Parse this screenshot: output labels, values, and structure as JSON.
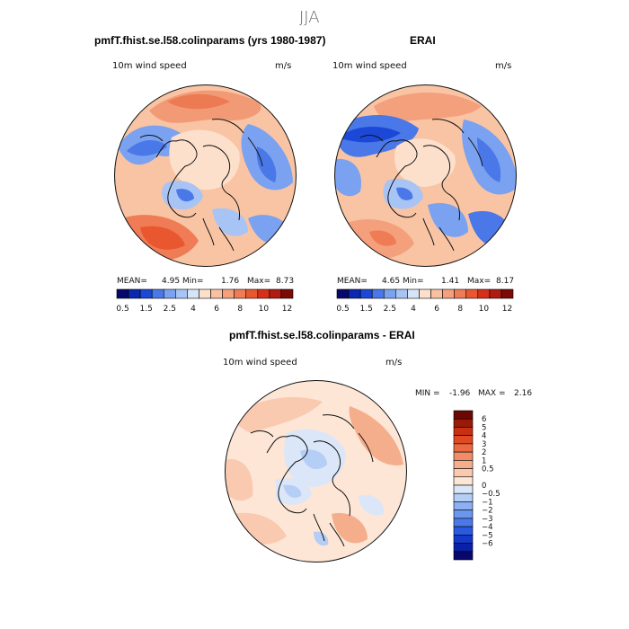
{
  "figure": {
    "title": "JJA",
    "colors": {
      "coast": "#111111"
    }
  },
  "panels": [
    {
      "id": "model",
      "title": "pmfT.fhist.se.l58.colinparams (yrs 1980-1987)",
      "variable": "10m wind speed",
      "units": "m/s",
      "stats": {
        "mean_label": "MEAN=",
        "mean": "4.95",
        "min_label": "Min=",
        "min": "1.76",
        "max_label": "Max=",
        "max": "8.73"
      }
    },
    {
      "id": "obs",
      "title": "ERAI",
      "variable": "10m wind speed",
      "units": "m/s",
      "stats": {
        "mean_label": "MEAN=",
        "mean": "4.65",
        "min_label": "Min=",
        "min": "1.41",
        "max_label": "Max=",
        "max": "8.17"
      }
    },
    {
      "id": "diff",
      "title": "pmfT.fhist.se.l58.colinparams - ERAI",
      "variable": "10m wind speed",
      "units": "m/s",
      "stats": {
        "min_label": "MIN =",
        "min": "-1.96",
        "max_label": "MAX =",
        "max": "2.16"
      }
    }
  ],
  "colorbar_abs": {
    "colors": [
      "#08086b",
      "#0a28b0",
      "#1c48d8",
      "#4a78e8",
      "#7aa2f0",
      "#a8c4f5",
      "#d6e4f8",
      "#fde0cc",
      "#f9c0a2",
      "#f4a07c",
      "#ef7c55",
      "#e8572f",
      "#d6301a",
      "#b01c10",
      "#7c0a06"
    ],
    "tick_labels": [
      "0.5",
      "1.5",
      "2.5",
      "4",
      "6",
      "8",
      "10",
      "12"
    ]
  },
  "colorbar_diff": {
    "colors": [
      "#08086b",
      "#0a20a8",
      "#1238cc",
      "#2a5ae0",
      "#4a7ae8",
      "#6c96ee",
      "#8cb0f2",
      "#b4cef6",
      "#dbe6f8",
      "#fde6d6",
      "#f9cab0",
      "#f5ae8c",
      "#f08c66",
      "#ea6a42",
      "#e04a22",
      "#c83012",
      "#9a1a08",
      "#6c0804"
    ],
    "tick_labels": [
      "6",
      "5",
      "4",
      "3",
      "2",
      "1",
      "0.5",
      "0",
      "−0.5",
      "−1",
      "−2",
      "−3",
      "−4",
      "−5",
      "−6"
    ]
  }
}
